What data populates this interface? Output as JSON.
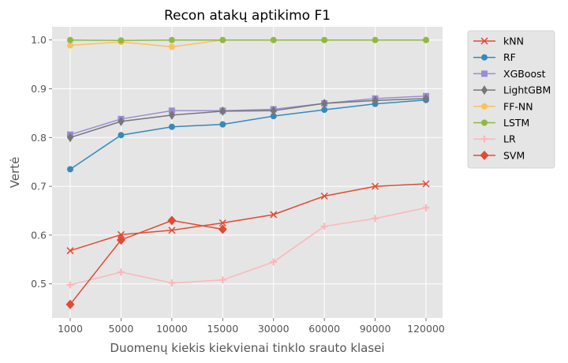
{
  "chart_data": {
    "type": "line",
    "title": "Recon atakų aptikimo F1",
    "xlabel": "Duomenų kiekis kiekvienai tinklo srauto klasei",
    "ylabel": "Vertė",
    "categories": [
      "1000",
      "5000",
      "10000",
      "15000",
      "30000",
      "60000",
      "90000",
      "120000"
    ],
    "ylim": [
      0.43,
      1.027
    ],
    "yticks": [
      "0.5",
      "0.6",
      "0.7",
      "0.8",
      "0.9",
      "1.0"
    ],
    "grid": true,
    "legend_position": "outside-right",
    "series": [
      {
        "name": "kNN",
        "color": "#E24A33",
        "marker": "x",
        "values": [
          0.568,
          0.601,
          0.61,
          0.625,
          0.642,
          0.68,
          0.7,
          0.705
        ]
      },
      {
        "name": "RF",
        "color": "#348ABD",
        "marker": "circle",
        "values": [
          0.735,
          0.805,
          0.822,
          0.827,
          0.844,
          0.857,
          0.869,
          0.877
        ]
      },
      {
        "name": "XGBoost",
        "color": "#988ED5",
        "marker": "square",
        "values": [
          0.806,
          0.838,
          0.855,
          0.855,
          0.858,
          0.87,
          0.88,
          0.885
        ]
      },
      {
        "name": "LightGBM",
        "color": "#777777",
        "marker": "thin-diamond",
        "values": [
          0.8,
          0.833,
          0.846,
          0.854,
          0.855,
          0.87,
          0.876,
          0.88
        ]
      },
      {
        "name": "FF-NN",
        "color": "#FBC15E",
        "marker": "circle",
        "values": [
          0.989,
          0.996,
          0.986,
          1.0,
          1.0,
          1.0,
          1.0,
          1.0
        ]
      },
      {
        "name": "LSTM",
        "color": "#8EBA42",
        "marker": "circle",
        "values": [
          1.0,
          0.999,
          1.0,
          1.0,
          1.0,
          1.0,
          1.0,
          1.0
        ]
      },
      {
        "name": "LR",
        "color": "#FFB5B8",
        "marker": "plus",
        "values": [
          0.498,
          0.524,
          0.502,
          0.508,
          0.545,
          0.618,
          0.634,
          0.656
        ]
      },
      {
        "name": "SVM",
        "color": "#E24A33",
        "marker": "diamond",
        "values": [
          0.458,
          0.59,
          0.63,
          0.612,
          null,
          null,
          null,
          null
        ]
      }
    ]
  }
}
